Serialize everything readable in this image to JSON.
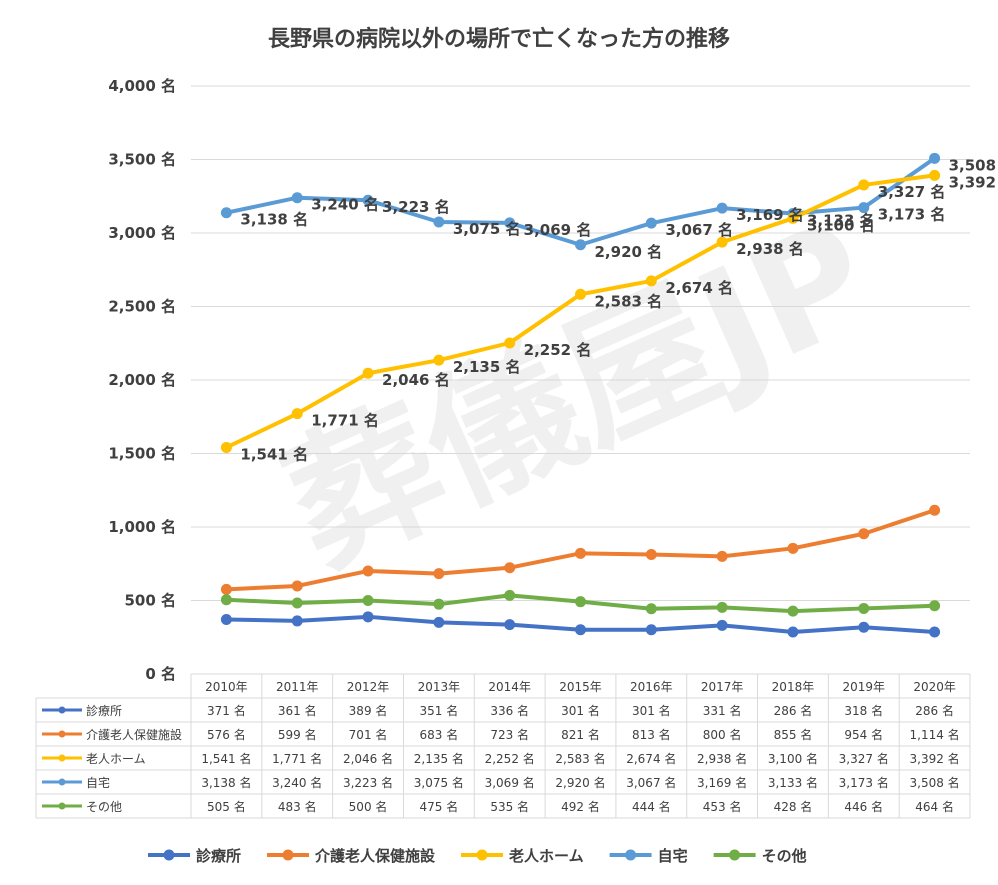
{
  "chart_data": {
    "type": "line",
    "title": "長野県の病院以外の場所で亡くなった方の推移",
    "watermark": "葬儀屋JP",
    "unit": "名",
    "ylim": [
      0,
      4000
    ],
    "y_ticks": [
      "4,000 名",
      "3,500 名",
      "3,000 名",
      "2,500 名",
      "2,000 名",
      "1,500 名",
      "1,000 名",
      "500 名",
      "0 名"
    ],
    "y_tick_values": [
      4000,
      3500,
      3000,
      2500,
      2000,
      1500,
      1000,
      500,
      0
    ],
    "categories": [
      "2010年",
      "2011年",
      "2012年",
      "2013年",
      "2014年",
      "2015年",
      "2016年",
      "2017年",
      "2018年",
      "2019年",
      "2020年"
    ],
    "legend_position": "bottom",
    "series": [
      {
        "name": "診療所",
        "color": "#4472C4",
        "show_data_labels": false,
        "values": [
          371,
          361,
          389,
          351,
          336,
          301,
          301,
          331,
          286,
          318,
          286
        ],
        "value_labels": [
          "371 名",
          "361 名",
          "389 名",
          "351 名",
          "336 名",
          "301 名",
          "301 名",
          "331 名",
          "286 名",
          "318 名",
          "286 名"
        ]
      },
      {
        "name": "介護老人保健施設",
        "color": "#ED7D31",
        "show_data_labels": false,
        "values": [
          576,
          599,
          701,
          683,
          723,
          821,
          813,
          800,
          855,
          954,
          1114
        ],
        "value_labels": [
          "576 名",
          "599 名",
          "701 名",
          "683 名",
          "723 名",
          "821 名",
          "813 名",
          "800 名",
          "855 名",
          "954 名",
          "1,114 名"
        ]
      },
      {
        "name": "老人ホーム",
        "color": "#FFC000",
        "show_data_labels": true,
        "values": [
          1541,
          1771,
          2046,
          2135,
          2252,
          2583,
          2674,
          2938,
          3100,
          3327,
          3392
        ],
        "value_labels": [
          "1,541 名",
          "1,771 名",
          "2,046 名",
          "2,135 名",
          "2,252 名",
          "2,583 名",
          "2,674 名",
          "2,938 名",
          "3,100 名",
          "3,327 名",
          "3,392 名"
        ]
      },
      {
        "name": "自宅",
        "color": "#5B9BD5",
        "show_data_labels": true,
        "values": [
          3138,
          3240,
          3223,
          3075,
          3069,
          2920,
          3067,
          3169,
          3133,
          3173,
          3508
        ],
        "value_labels": [
          "3,138 名",
          "3,240 名",
          "3,223 名",
          "3,075 名",
          "3,069 名",
          "2,920 名",
          "3,067 名",
          "3,169 名",
          "3,133 名",
          "3,173 名",
          "3,508 名"
        ]
      },
      {
        "name": "その他",
        "color": "#70AD47",
        "show_data_labels": false,
        "values": [
          505,
          483,
          500,
          475,
          535,
          492,
          444,
          453,
          428,
          446,
          464
        ],
        "value_labels": [
          "505 名",
          "483 名",
          "500 名",
          "475 名",
          "535 名",
          "492 名",
          "444 名",
          "453 名",
          "428 名",
          "446 名",
          "464 名"
        ]
      }
    ]
  }
}
